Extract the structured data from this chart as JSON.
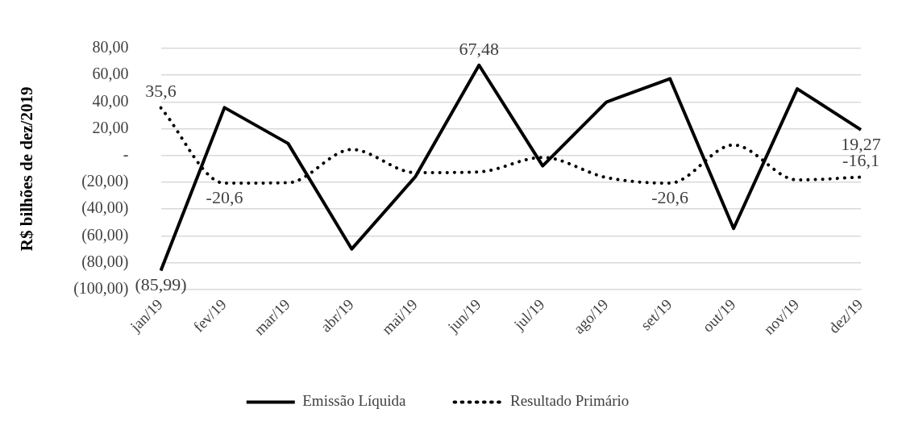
{
  "chart_data": {
    "type": "line",
    "ylabel": "R$ bilhões de dez/2019",
    "categories": [
      "jan/19",
      "fev/19",
      "mar/19",
      "abr/19",
      "mai/19",
      "jun/19",
      "jul/19",
      "ago/19",
      "set/19",
      "out/19",
      "nov/19",
      "dez/19"
    ],
    "series": [
      {
        "name": "Emissão Líquida",
        "color": "#000000",
        "line_style": "solid",
        "values": [
          -85.99,
          35.8,
          9.0,
          -69.8,
          -15.8,
          67.48,
          -7.7,
          39.9,
          57.4,
          -54.5,
          49.8,
          19.27
        ],
        "value_labels": [
          "(85,99)",
          null,
          null,
          null,
          null,
          "67,48",
          null,
          null,
          null,
          null,
          null,
          "19,27"
        ]
      },
      {
        "name": "Resultado Primário",
        "color": "#000000",
        "line_style": "dotted",
        "values": [
          35.6,
          -20.6,
          -20.3,
          4.5,
          -12.8,
          -12.2,
          -1.4,
          -16.4,
          -20.6,
          7.9,
          -18.2,
          -16.1
        ],
        "value_labels": [
          "35,6",
          "-20,6",
          null,
          null,
          null,
          null,
          null,
          null,
          "-20,6",
          null,
          null,
          "-16,1"
        ]
      }
    ],
    "ylim": [
      -100,
      80
    ],
    "yticks": [
      {
        "value": -100,
        "label": "(100,00)"
      },
      {
        "value": -80,
        "label": "(80,00)"
      },
      {
        "value": -60,
        "label": "(60,00)"
      },
      {
        "value": -40,
        "label": "(40,00)"
      },
      {
        "value": -20,
        "label": "(20,00)"
      },
      {
        "value": 0,
        "label": "-"
      },
      {
        "value": 20,
        "label": "20,00"
      },
      {
        "value": 40,
        "label": "40,00"
      },
      {
        "value": 60,
        "label": "60,00"
      },
      {
        "value": 80,
        "label": "80,00"
      }
    ],
    "grid": "y",
    "legend": "bottom",
    "marker": "none"
  }
}
